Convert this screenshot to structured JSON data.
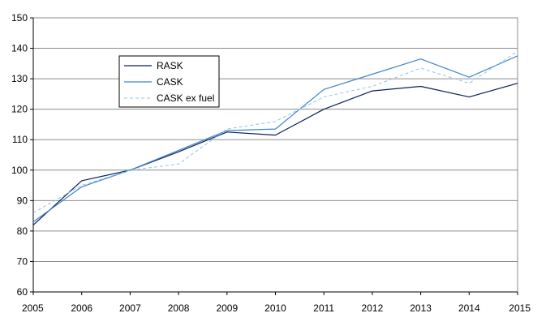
{
  "chart_data": {
    "type": "line",
    "x": [
      "2005",
      "2006",
      "2007",
      "2008",
      "2009",
      "2010",
      "2011",
      "2012",
      "2013",
      "2014",
      "2015"
    ],
    "series": [
      {
        "name": "RASK",
        "values": [
          82,
          96.5,
          100,
          106,
          112.5,
          111.5,
          120,
          126,
          127.5,
          124,
          128.5
        ],
        "color": "#0a1f5c",
        "dash": "solid"
      },
      {
        "name": "CASK",
        "values": [
          83,
          94.5,
          100,
          106.5,
          113,
          113.5,
          126.5,
          131.5,
          136.5,
          130.5,
          137.5
        ],
        "color": "#3f86c9",
        "dash": "solid"
      },
      {
        "name": "CASK ex fuel",
        "values": [
          86,
          95,
          100,
          102,
          113.5,
          116,
          124,
          127.5,
          133.5,
          128.5,
          139
        ],
        "color": "#8ec4ec",
        "dash": "dashed"
      }
    ],
    "y_ticks": [
      60,
      70,
      80,
      90,
      100,
      110,
      120,
      130,
      140,
      150
    ],
    "ylim": [
      60,
      150
    ],
    "title": "",
    "xlabel": "",
    "ylabel": "",
    "grid": "horizontal",
    "legend_position": "top-left"
  }
}
